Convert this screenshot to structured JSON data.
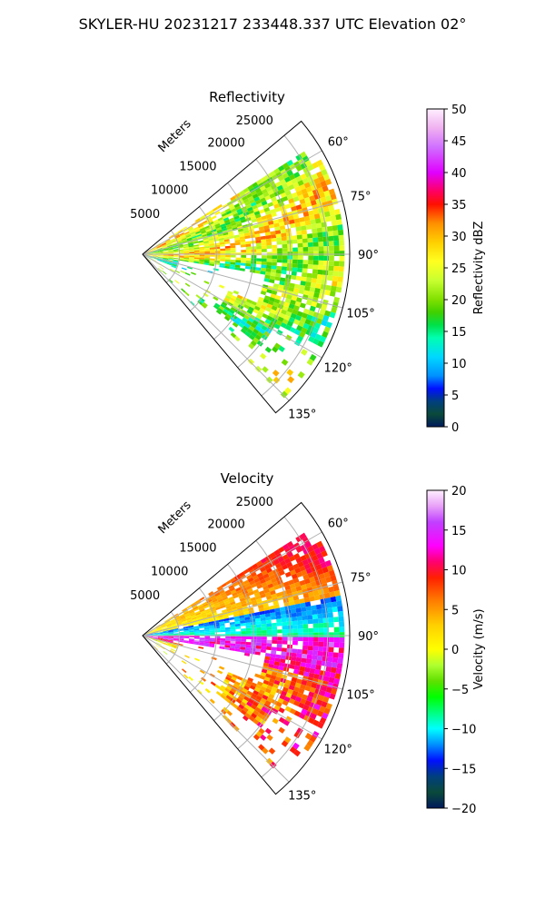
{
  "figure": {
    "suptitle": "SKYLER-HU  20231217  233448.337 UTC Elevation 02°"
  },
  "chart_data": [
    {
      "type": "heatmap",
      "title": "Reflectivity",
      "rlabel": "Meters",
      "r_ticks": [
        "5000",
        "10000",
        "15000",
        "20000",
        "25000"
      ],
      "r_tick_values": [
        5000,
        10000,
        15000,
        20000,
        25000
      ],
      "theta_ticks": [
        "60°",
        "75°",
        "90°",
        "105°",
        "120°",
        "135°"
      ],
      "theta_tick_values": [
        60,
        75,
        90,
        105,
        120,
        135
      ],
      "theta_range": [
        50,
        140
      ],
      "r_max": 28000,
      "colorbar": {
        "label": "Reflectivity dBZ",
        "ticks": [
          "0",
          "5",
          "10",
          "15",
          "20",
          "25",
          "30",
          "35",
          "40",
          "45",
          "50"
        ],
        "range": [
          0,
          50
        ],
        "stops": [
          {
            "v": 0,
            "c": "#001a5c"
          },
          {
            "v": 2,
            "c": "#0a4a3a"
          },
          {
            "v": 4,
            "c": "#003f7f"
          },
          {
            "v": 6,
            "c": "#0010ff"
          },
          {
            "v": 8,
            "c": "#0090ff"
          },
          {
            "v": 11,
            "c": "#00d8ff"
          },
          {
            "v": 14,
            "c": "#00ffb0"
          },
          {
            "v": 16,
            "c": "#00e04a"
          },
          {
            "v": 18,
            "c": "#40d000"
          },
          {
            "v": 20,
            "c": "#80e000"
          },
          {
            "v": 23,
            "c": "#c8ff30"
          },
          {
            "v": 26,
            "c": "#ffff20"
          },
          {
            "v": 29,
            "c": "#ffd000"
          },
          {
            "v": 32,
            "c": "#ff9000"
          },
          {
            "v": 35,
            "c": "#ff1000"
          },
          {
            "v": 37,
            "c": "#ff0060"
          },
          {
            "v": 40,
            "c": "#e000ff"
          },
          {
            "v": 44,
            "c": "#d070ff"
          },
          {
            "v": 47,
            "c": "#f0b0f0"
          },
          {
            "v": 50,
            "c": "#fff0ff"
          }
        ]
      }
    },
    {
      "type": "heatmap",
      "title": "Velocity",
      "rlabel": "Meters",
      "r_ticks": [
        "5000",
        "10000",
        "15000",
        "20000",
        "25000"
      ],
      "r_tick_values": [
        5000,
        10000,
        15000,
        20000,
        25000
      ],
      "theta_ticks": [
        "60°",
        "75°",
        "90°",
        "105°",
        "120°",
        "135°"
      ],
      "theta_tick_values": [
        60,
        75,
        90,
        105,
        120,
        135
      ],
      "theta_range": [
        50,
        140
      ],
      "r_max": 28000,
      "colorbar": {
        "label": "Velocity (m/s)",
        "ticks": [
          "−20",
          "−15",
          "−10",
          "−5",
          "0",
          "5",
          "10",
          "15",
          "20"
        ],
        "range": [
          -20,
          20
        ],
        "stops": [
          {
            "v": -20,
            "c": "#001a5c"
          },
          {
            "v": -18,
            "c": "#0a4a3a"
          },
          {
            "v": -16,
            "c": "#003f7f"
          },
          {
            "v": -14,
            "c": "#0010ff"
          },
          {
            "v": -12,
            "c": "#0090ff"
          },
          {
            "v": -10,
            "c": "#00ffff"
          },
          {
            "v": -8,
            "c": "#00ff80"
          },
          {
            "v": -6,
            "c": "#00ff00"
          },
          {
            "v": -4,
            "c": "#60e000"
          },
          {
            "v": -2,
            "c": "#b0ff30"
          },
          {
            "v": 0,
            "c": "#ffff00"
          },
          {
            "v": 3,
            "c": "#ffd000"
          },
          {
            "v": 6,
            "c": "#ff8000"
          },
          {
            "v": 9,
            "c": "#ff2000"
          },
          {
            "v": 11,
            "c": "#ff0070"
          },
          {
            "v": 13,
            "c": "#ff00ff"
          },
          {
            "v": 16,
            "c": "#c040ff"
          },
          {
            "v": 18,
            "c": "#e8a0f8"
          },
          {
            "v": 20,
            "c": "#fff0ff"
          }
        ]
      }
    }
  ]
}
